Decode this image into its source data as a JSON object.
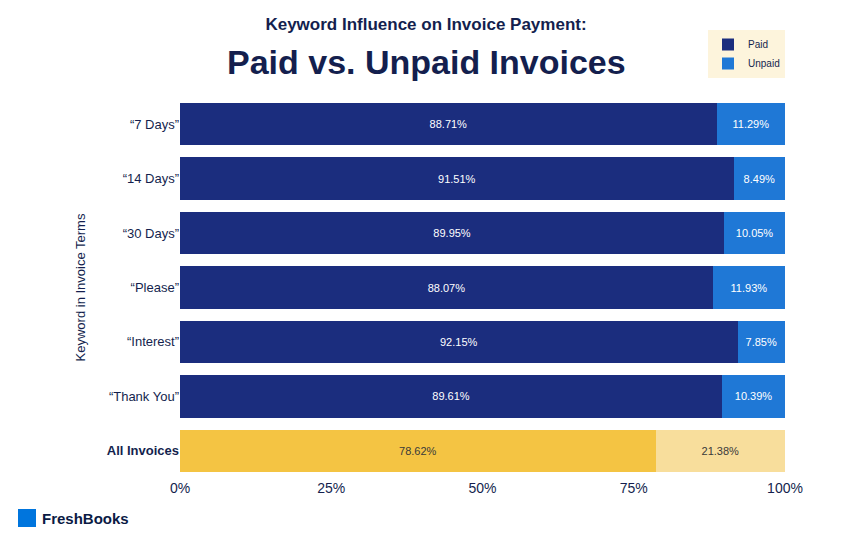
{
  "chart_data": {
    "type": "bar",
    "orientation": "horizontal",
    "stacked": true,
    "data_labels": true,
    "grid": false,
    "legend": "upper right",
    "title": "Keyword Influence on Invoice Payment:",
    "subtitle": "Paid vs. Unpaid Invoices",
    "y_label": "Keyword in Invoice Terms",
    "categories": [
      "“7 Days”",
      "“14 Days”",
      "“30 Days”",
      "“Please”",
      "“Interest”",
      "“Thank You”",
      "All Invoices"
    ],
    "series": [
      {
        "name": "Paid",
        "colors": [
          "#1b2d7e",
          "#1b2d7e",
          "#1b2d7e",
          "#1b2d7e",
          "#1b2d7e",
          "#1b2d7e",
          "#f4c443"
        ],
        "values": [
          88.71,
          91.51,
          89.95,
          88.07,
          92.15,
          89.61,
          78.62
        ],
        "value_labels": [
          "88.71%",
          "91.51%",
          "89.95%",
          "88.07%",
          "92.15%",
          "89.61%",
          "78.62%"
        ]
      },
      {
        "name": "Unpaid",
        "colors": [
          "#1f78d6",
          "#1f78d6",
          "#1f78d6",
          "#1f78d6",
          "#1f78d6",
          "#1f78d6",
          "#f8de9c"
        ],
        "values": [
          11.29,
          8.49,
          10.05,
          11.93,
          7.85,
          10.39,
          21.38
        ],
        "value_labels": [
          "11.29%",
          "8.49%",
          "10.05%",
          "11.93%",
          "7.85%",
          "10.39%",
          "21.38%"
        ]
      }
    ],
    "xlim": [
      0,
      100
    ],
    "xticks": [
      {
        "value": 0,
        "label": "0%"
      },
      {
        "value": 25,
        "label": "25%"
      },
      {
        "value": 50,
        "label": "50%"
      },
      {
        "value": 75,
        "label": "75%"
      },
      {
        "value": 100,
        "label": "100%"
      }
    ],
    "annotations": [
      "FreshBooks"
    ]
  }
}
